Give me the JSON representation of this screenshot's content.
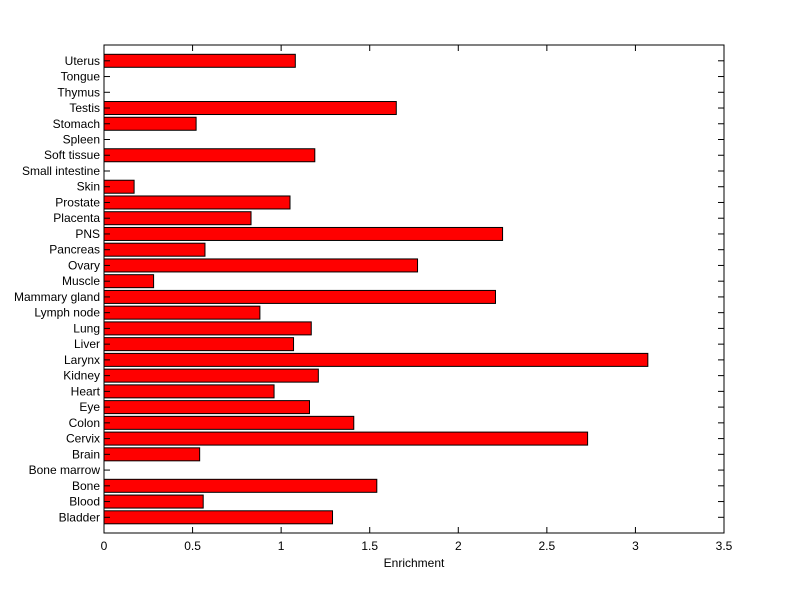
{
  "chart_data": {
    "type": "bar",
    "orientation": "horizontal",
    "xlabel": "Enrichment",
    "ylabel": "",
    "title": "",
    "xlim": [
      0,
      3.5
    ],
    "xticks": [
      "0",
      "0.5",
      "1",
      "1.5",
      "2",
      "2.5",
      "3",
      "3.5"
    ],
    "bar_color": "#ff0000",
    "edge_color": "#000000",
    "grid": false,
    "categories": [
      "Bladder",
      "Blood",
      "Bone",
      "Bone marrow",
      "Brain",
      "Cervix",
      "Colon",
      "Eye",
      "Heart",
      "Kidney",
      "Larynx",
      "Liver",
      "Lung",
      "Lymph node",
      "Mammary gland",
      "Muscle",
      "Ovary",
      "Pancreas",
      "PNS",
      "Placenta",
      "Prostate",
      "Skin",
      "Small intestine",
      "Soft tissue",
      "Spleen",
      "Stomach",
      "Testis",
      "Thymus",
      "Tongue",
      "Uterus"
    ],
    "values": [
      1.29,
      0.56,
      1.54,
      0,
      0.54,
      2.73,
      1.41,
      1.16,
      0.96,
      1.21,
      3.07,
      1.07,
      1.17,
      0.88,
      2.21,
      0.28,
      1.77,
      0.57,
      2.25,
      0.83,
      1.05,
      0.17,
      0,
      1.19,
      0,
      0.52,
      1.65,
      0,
      0,
      1.08
    ]
  }
}
